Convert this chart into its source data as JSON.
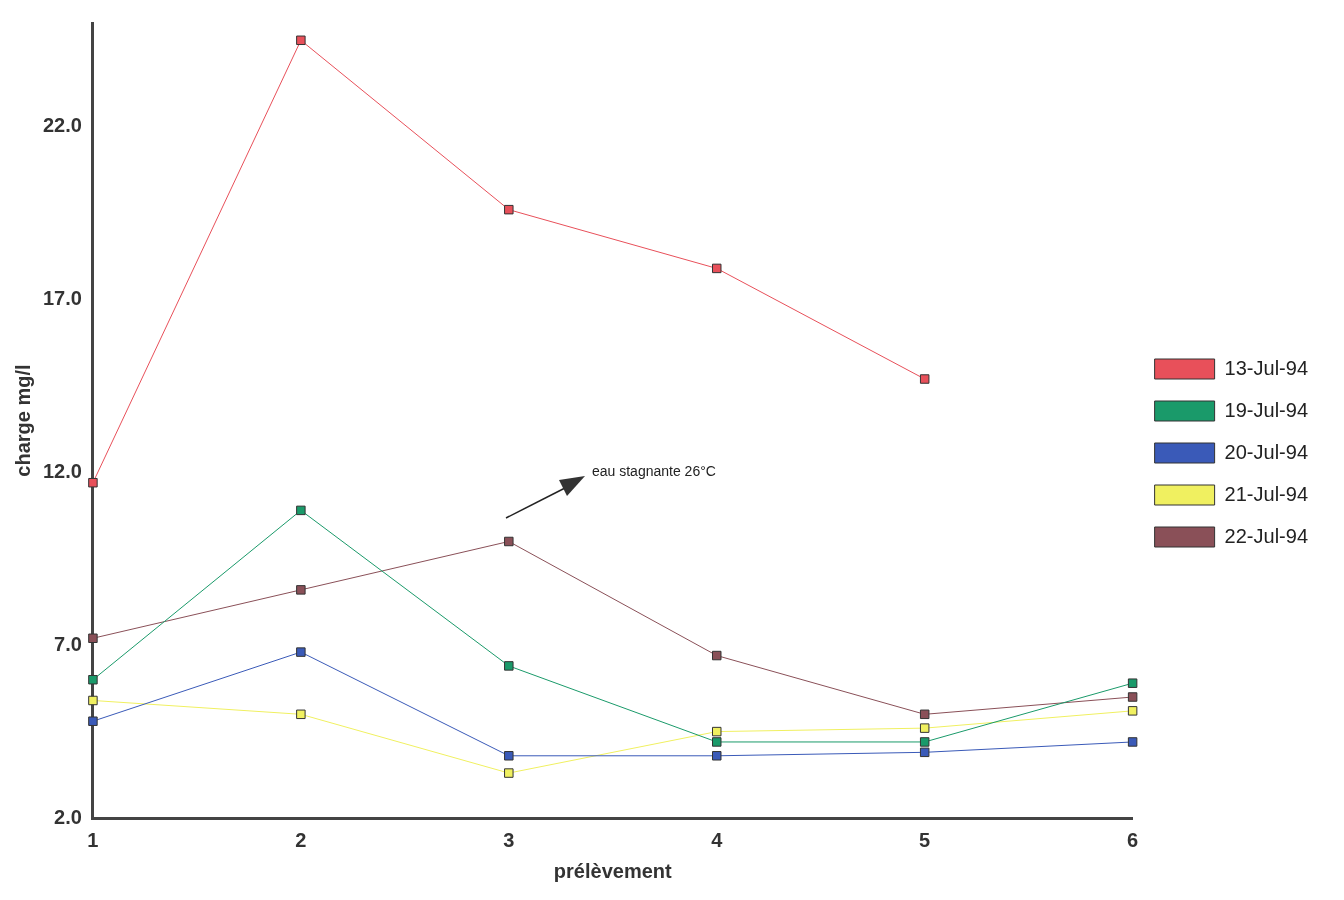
{
  "chart_data": {
    "type": "line",
    "xlabel": "prélèvement",
    "ylabel": "charge mg/l",
    "categories": [
      "1",
      "2",
      "3",
      "4",
      "5",
      "6"
    ],
    "series": [
      {
        "name": "13-Jul-94",
        "color": "#e8505a",
        "values": [
          11.7,
          24.5,
          19.6,
          17.9,
          14.7,
          null
        ]
      },
      {
        "name": "19-Jul-94",
        "color": "#1a9a6a",
        "values": [
          6.0,
          10.9,
          6.4,
          4.2,
          4.2,
          5.9
        ]
      },
      {
        "name": "20-Jul-94",
        "color": "#3a5ab8",
        "values": [
          4.8,
          6.8,
          3.8,
          3.8,
          3.9,
          4.2
        ]
      },
      {
        "name": "21-Jul-94",
        "color": "#f0f060",
        "values": [
          5.4,
          5.0,
          3.3,
          4.5,
          4.6,
          5.1
        ]
      },
      {
        "name": "22-Jul-94",
        "color": "#8a5058",
        "values": [
          7.2,
          8.6,
          10.0,
          6.7,
          5.0,
          5.5
        ]
      }
    ],
    "ylim": [
      2,
      25
    ],
    "yticks": [
      {
        "value": 2,
        "label": "2.0"
      },
      {
        "value": 7,
        "label": "7.0"
      },
      {
        "value": 12,
        "label": "12.0"
      },
      {
        "value": 17,
        "label": "17.0"
      },
      {
        "value": 22,
        "label": "22.0"
      }
    ],
    "annotations": [
      "eau stagnante 26°C"
    ],
    "legend": "right",
    "marker": "square",
    "line_style": "solid",
    "grid": false
  }
}
